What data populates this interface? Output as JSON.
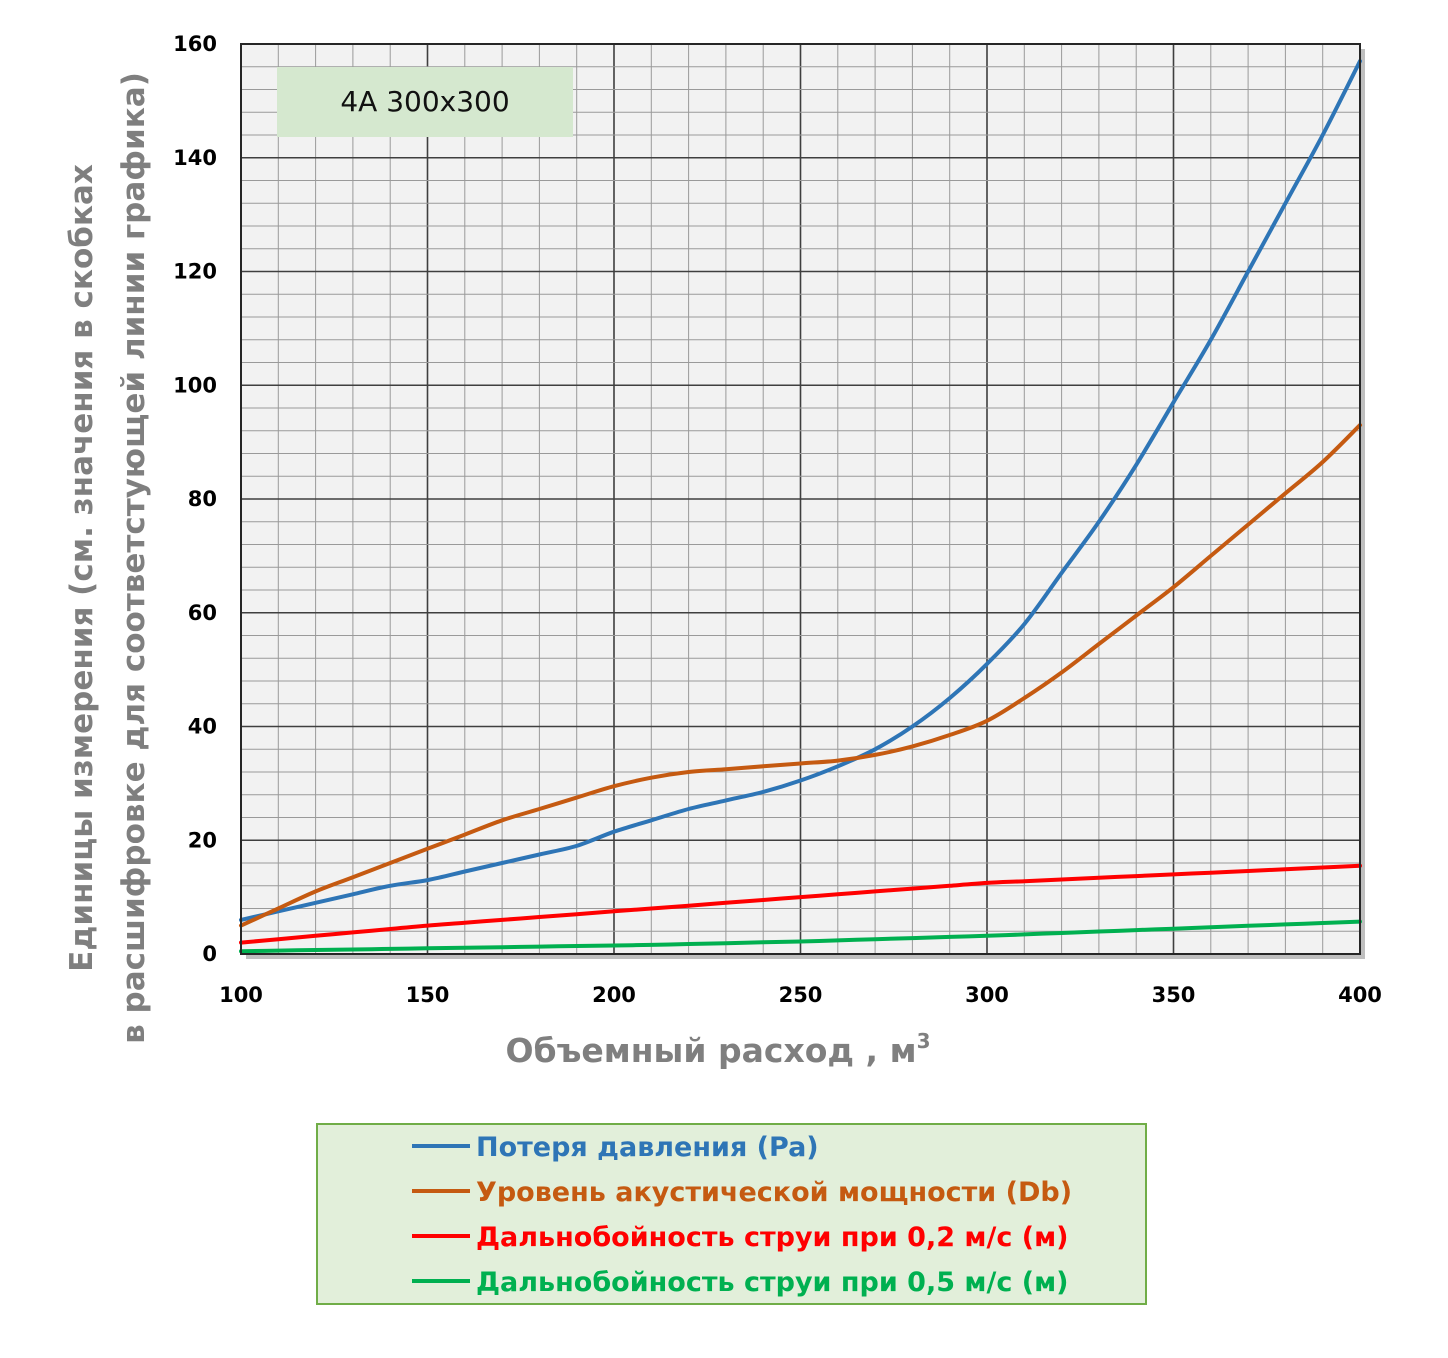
{
  "chart_data": {
    "type": "line",
    "title": "",
    "annotation": "4A 300x300",
    "xlabel": "Объемный расход , м",
    "xlabel_sup": "3",
    "ylabel_line1": "Единицы измерения (см. значения в скобках",
    "ylabel_line2": "в расшифровке для соответстующей линии графика)",
    "xlim": [
      100,
      400
    ],
    "ylim": [
      0,
      160
    ],
    "xticks": [
      "100",
      "150",
      "200",
      "250",
      "300",
      "350",
      "400"
    ],
    "yticks": [
      "0",
      "20",
      "40",
      "60",
      "80",
      "100",
      "120",
      "140",
      "160"
    ],
    "grid": true,
    "legend_position": "bottom",
    "x": [
      100,
      110,
      120,
      130,
      140,
      150,
      160,
      170,
      180,
      190,
      200,
      210,
      220,
      230,
      240,
      250,
      260,
      270,
      280,
      290,
      300,
      310,
      320,
      330,
      340,
      350,
      360,
      370,
      380,
      390,
      400
    ],
    "series": [
      {
        "name": "Потеря давления (Pa)",
        "color": "#2e75b6",
        "values": [
          6,
          7.5,
          9,
          10.5,
          12,
          13,
          14.5,
          16,
          17.5,
          19,
          21.5,
          23.5,
          25.5,
          27,
          28.5,
          30.5,
          33,
          36,
          40,
          45,
          51,
          58,
          67,
          76,
          86,
          97,
          108,
          120,
          132,
          144,
          157
        ]
      },
      {
        "name": "Уровень акустической мощности (Db)",
        "color": "#c55a11",
        "values": [
          5,
          8,
          11,
          13.5,
          16,
          18.5,
          21,
          23.5,
          25.5,
          27.5,
          29.5,
          31,
          32,
          32.5,
          33,
          33.5,
          34,
          35,
          36.5,
          38.5,
          41,
          45,
          49.5,
          54.5,
          59.5,
          64.5,
          70,
          75.5,
          81,
          86.5,
          93
        ]
      },
      {
        "name": "Дальнобойность струи при 0,2 м/с (м)",
        "color": "#ff0000",
        "values": [
          2,
          2.6,
          3.2,
          3.8,
          4.4,
          5,
          5.5,
          6,
          6.5,
          7,
          7.5,
          8,
          8.5,
          9,
          9.5,
          10,
          10.5,
          11,
          11.5,
          12,
          12.5,
          12.8,
          13.1,
          13.4,
          13.7,
          14,
          14.3,
          14.6,
          14.9,
          15.2,
          15.5
        ]
      },
      {
        "name": "Дальнобойность струи при 0,5 м/с (м)",
        "color": "#00b050",
        "values": [
          0.5,
          0.6,
          0.7,
          0.8,
          0.9,
          1,
          1.1,
          1.2,
          1.3,
          1.4,
          1.5,
          1.6,
          1.75,
          1.9,
          2.05,
          2.2,
          2.4,
          2.6,
          2.8,
          3,
          3.2,
          3.45,
          3.7,
          3.95,
          4.2,
          4.45,
          4.7,
          4.95,
          5.2,
          5.45,
          5.7
        ]
      }
    ]
  }
}
